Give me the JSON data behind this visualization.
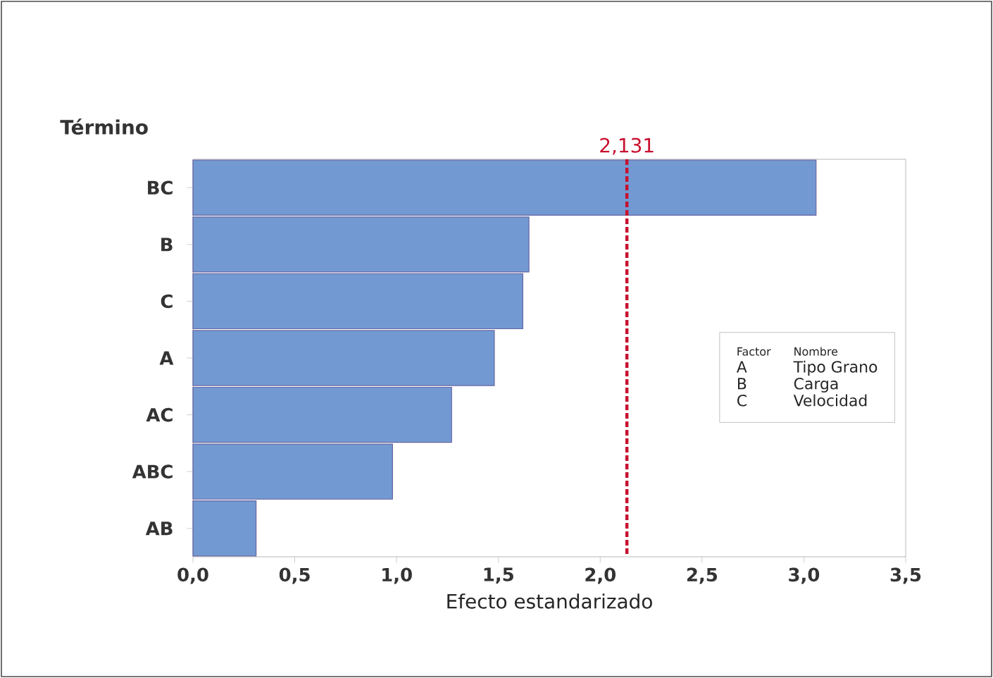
{
  "chart_data": {
    "type": "bar",
    "orientation": "horizontal",
    "ylabel": "Término",
    "xlabel": "Efecto estandarizado",
    "categories": [
      "BC",
      "B",
      "C",
      "A",
      "AC",
      "ABC",
      "AB"
    ],
    "values": [
      3.06,
      1.65,
      1.62,
      1.48,
      1.27,
      0.98,
      0.31
    ],
    "color": "#7299d2",
    "xlim": [
      0,
      3.5
    ],
    "xticks": [
      {
        "value": 0,
        "label": "0,0"
      },
      {
        "value": 0.5,
        "label": "0,5"
      },
      {
        "value": 1,
        "label": "1,0"
      },
      {
        "value": 1.5,
        "label": "1,5"
      },
      {
        "value": 2,
        "label": "2,0"
      },
      {
        "value": 2.5,
        "label": "2,5"
      },
      {
        "value": 3,
        "label": "3,0"
      },
      {
        "value": 3.5,
        "label": "3,5"
      }
    ],
    "ref_lines": [
      {
        "axis": "x",
        "value": 2.131,
        "label": "2,131",
        "color": "#c8102e",
        "line_style": "dashed"
      }
    ],
    "annotations": [
      "Factor",
      "Nombre",
      "A",
      "Tipo Grano",
      "B",
      "Carga",
      "C",
      "Velocidad"
    ],
    "grid": false
  }
}
